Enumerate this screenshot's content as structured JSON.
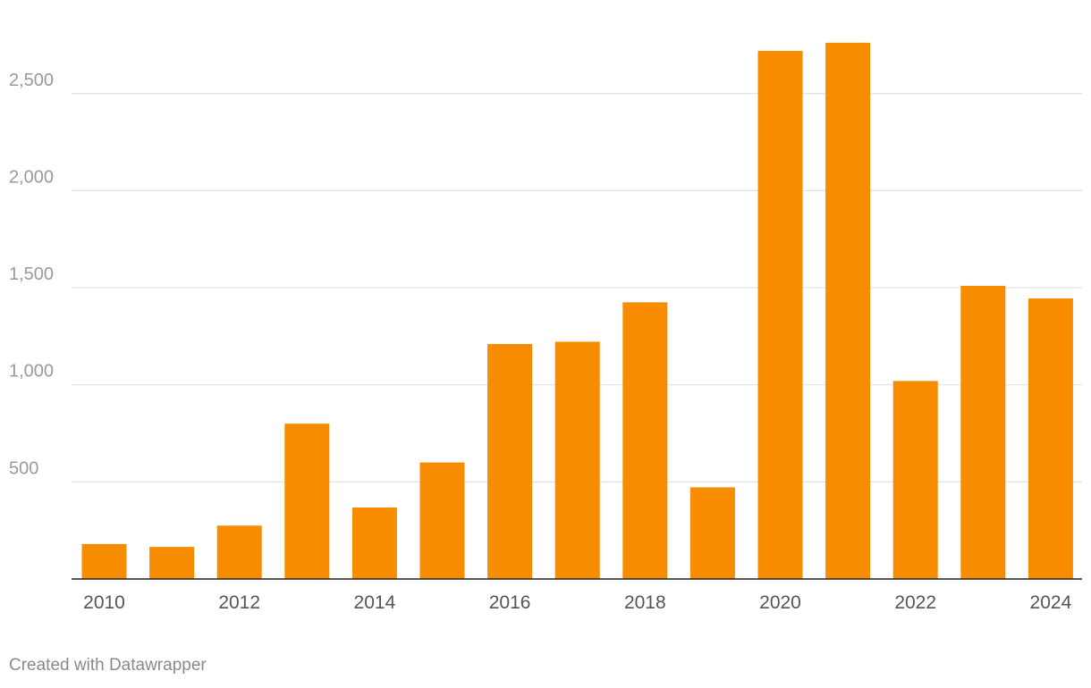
{
  "chart_data": {
    "type": "bar",
    "title": "",
    "xlabel": "",
    "ylabel": "",
    "categories": [
      "2010",
      "2011",
      "2012",
      "2013",
      "2014",
      "2015",
      "2016",
      "2017",
      "2018",
      "2019",
      "2020",
      "2021",
      "2022",
      "2023",
      "2024"
    ],
    "values": [
      180,
      165,
      275,
      800,
      368,
      600,
      1210,
      1222,
      1425,
      472,
      2720,
      2762,
      1020,
      1510,
      1445
    ],
    "x_tick_labels": [
      "2010",
      "",
      "2012",
      "",
      "2014",
      "",
      "2016",
      "",
      "2018",
      "",
      "2020",
      "",
      "2022",
      "",
      "2024"
    ],
    "y_ticks": [
      500,
      1000,
      1500,
      2000,
      2500
    ],
    "y_tick_labels": [
      "500",
      "1,000",
      "1,500",
      "2,000",
      "2,500"
    ],
    "ylim": [
      0,
      2850
    ],
    "grid": true,
    "colors": {
      "bar": "#f78c00",
      "grid": "#e2e2e2",
      "axis": "#222222"
    }
  },
  "footer": {
    "credit": "Created with Datawrapper"
  }
}
